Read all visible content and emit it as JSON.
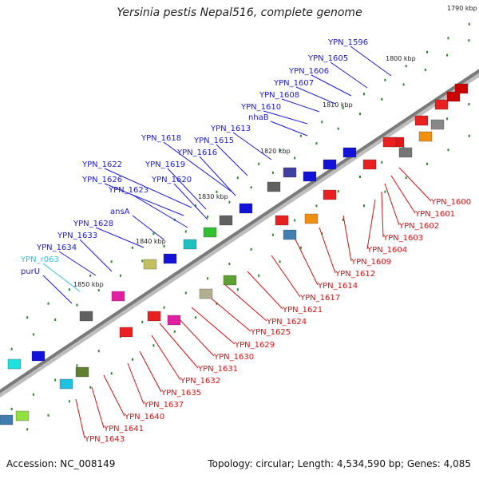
{
  "title": "Yersinia pestis Nepal516, complete genome",
  "footer": {
    "accession": "Accession: NC_008149",
    "summary": "Topology: circular; Length: 4,534,590 bp; Genes: 4,085"
  },
  "colors": {
    "forward_label": "#1a1ad6",
    "reverse_label": "#d41010",
    "rna_label": "#33c0e0",
    "backbone": "#8a8a8a"
  },
  "kbp_ticks": [
    "1790 kbp",
    "1800 kbp",
    "1810 kbp",
    "1820 kbp",
    "1830 kbp",
    "1840 kbp",
    "1850 kbp"
  ],
  "forward_labels": [
    "YPN_1596",
    "YPN_1605",
    "YPN_1606",
    "YPN_1607",
    "YPN_1608",
    "YPN_1610",
    "nhaB",
    "YPN_1613",
    "YPN_1615",
    "YPN_1618",
    "YPN_1616",
    "YPN_1622",
    "YPN_1619",
    "YPN_1626",
    "YPN_1620",
    "YPN_1623",
    "ansA",
    "YPN_1628",
    "YPN_1633",
    "YPN_1634",
    "YPN_r063",
    "purU"
  ],
  "reverse_labels": [
    "YPN_1600",
    "YPN_1601",
    "YPN_1602",
    "YPN_1603",
    "YPN_1604",
    "YPN_1609",
    "YPN_1612",
    "YPN_1614",
    "YPN_1617",
    "YPN_1621",
    "YPN_1624",
    "YPN_1625",
    "YPN_1629",
    "YPN_1630",
    "YPN_1631",
    "YPN_1632",
    "YPN_1635",
    "YPN_1637",
    "YPN_1640",
    "YPN_1641",
    "YPN_1643"
  ]
}
